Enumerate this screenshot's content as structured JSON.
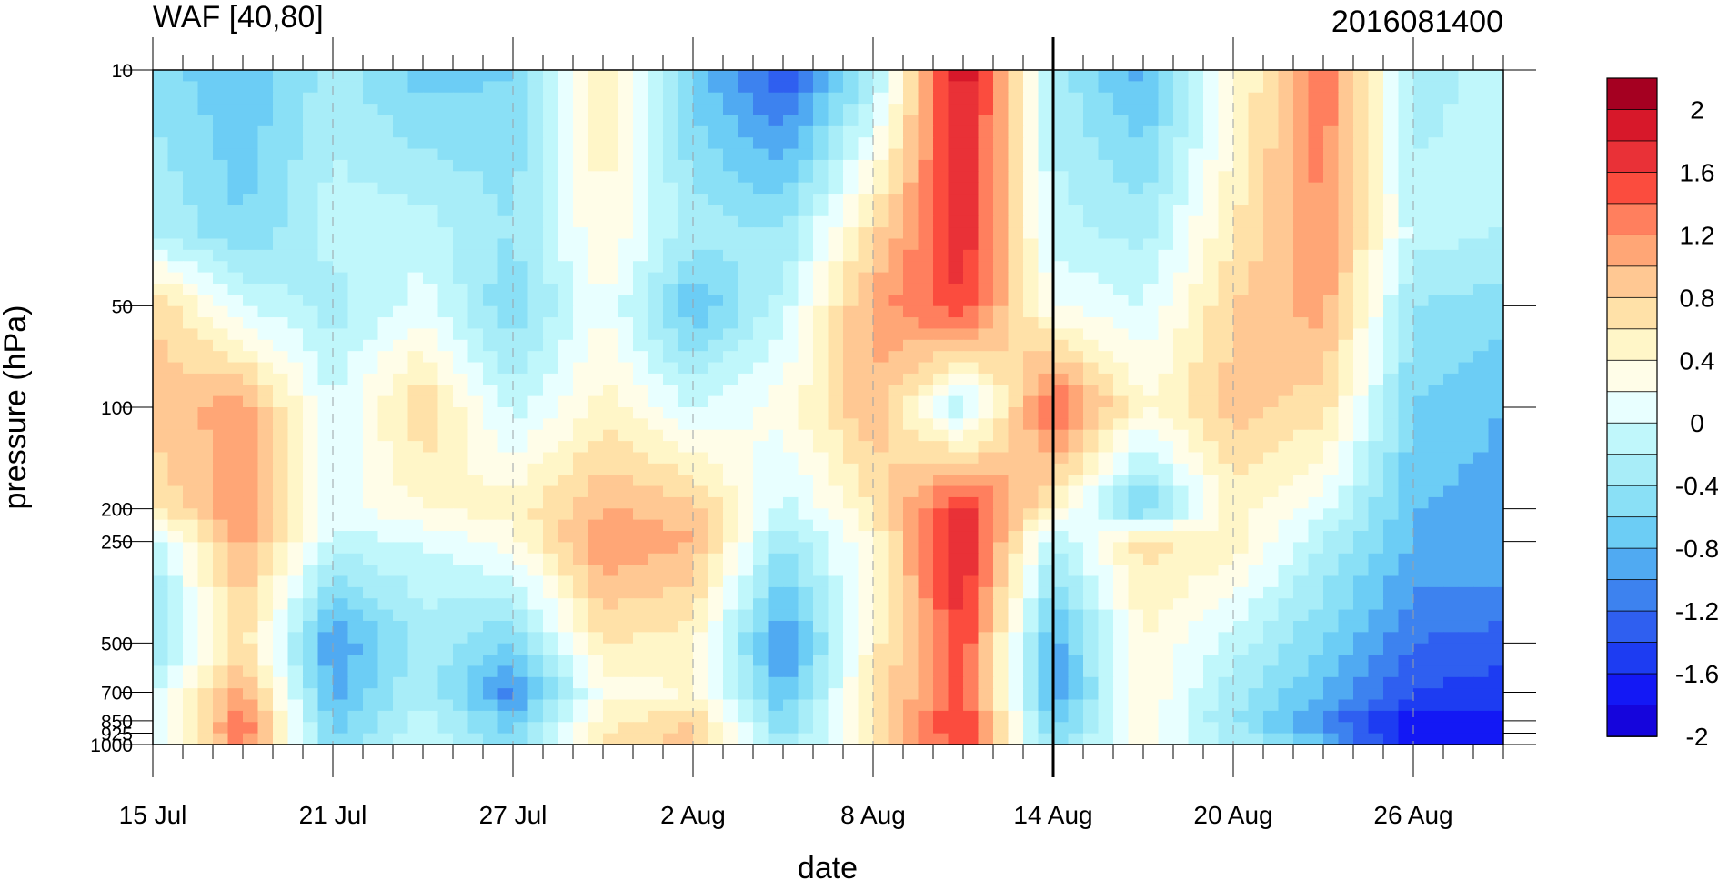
{
  "chart_data": {
    "type": "heatmap",
    "title_left": "WAF [40,80]",
    "title_right": "2016081400",
    "xlabel": "date",
    "ylabel": "pressure (hPa)",
    "x_ticks": [
      "15 Jul",
      "21 Jul",
      "27 Jul",
      "2 Aug",
      "8 Aug",
      "14 Aug",
      "20 Aug",
      "26 Aug"
    ],
    "x_range_days": [
      "2016-07-15",
      "2016-08-29"
    ],
    "y_scale": "log",
    "y_ticks": [
      10,
      50,
      100,
      200,
      250,
      500,
      700,
      850,
      925,
      1000
    ],
    "y_range": [
      1000,
      10
    ],
    "reference_line": "14 Aug",
    "colorbar": {
      "labels": [
        "2",
        "1.6",
        "1.2",
        "0.8",
        "0.4",
        "0",
        "-0.4",
        "-0.8",
        "-1.2",
        "-1.6",
        "-2"
      ],
      "colors": [
        "#a50021",
        "#d7182a",
        "#e93137",
        "#fb4c3e",
        "#ff7f5e",
        "#ffa676",
        "#ffc893",
        "#ffe1a8",
        "#fff6c8",
        "#fffde8",
        "#e8ffff",
        "#c0f7fb",
        "#a8edf8",
        "#8ae0f6",
        "#6ccdf5",
        "#50aaf2",
        "#3d82ef",
        "#2f5ff0",
        "#1d3cf2",
        "#1318f5",
        "#1505dc"
      ]
    },
    "values_description": "WAF field; grid is stored in script",
    "grid": {
      "x_nodes_days": [
        0,
        3,
        6,
        9,
        12,
        15,
        18,
        21,
        24,
        27,
        30,
        33,
        36,
        39,
        42,
        45
      ],
      "p_nodes_hPa": [
        10,
        30,
        50,
        100,
        200,
        250,
        500,
        700,
        850,
        1000
      ]
    }
  }
}
